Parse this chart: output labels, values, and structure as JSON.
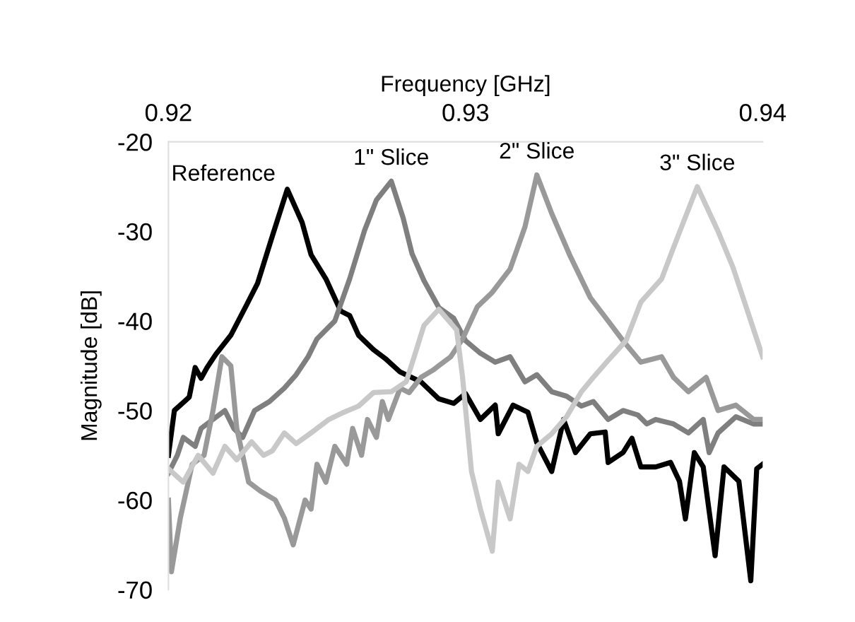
{
  "chart_data": {
    "type": "line",
    "xlabel": "Frequency [GHz]",
    "ylabel": "Magnitude [dB]",
    "xlim": [
      0.92,
      0.94
    ],
    "xticks": [
      0.92,
      0.93,
      0.94
    ],
    "ylim": [
      -70,
      -20
    ],
    "yticks": [
      -70,
      -60,
      -50,
      -40,
      -30,
      -20
    ],
    "grid": false,
    "legend": false,
    "marker": "none",
    "line_style": "solid",
    "series": [
      {
        "name": "Reference",
        "color": "#000000",
        "x": [
          0.92,
          0.9202,
          0.9207,
          0.9209,
          0.9211,
          0.9213,
          0.9216,
          0.9221,
          0.9226,
          0.923,
          0.9235,
          0.924,
          0.9245,
          0.9248,
          0.9253,
          0.9258,
          0.9261,
          0.9264,
          0.9269,
          0.9273,
          0.9278,
          0.9285,
          0.9291,
          0.9296,
          0.93,
          0.9305,
          0.931,
          0.9311,
          0.9316,
          0.9321,
          0.9324,
          0.9329,
          0.9333,
          0.9337,
          0.9342,
          0.9347,
          0.9348,
          0.9353,
          0.9356,
          0.9359,
          0.9364,
          0.9369,
          0.9372,
          0.9374,
          0.9377,
          0.938,
          0.9384,
          0.9387,
          0.9392,
          0.9396,
          0.9398,
          0.94
        ],
        "values": [
          -55,
          -50,
          -48.5,
          -45.2,
          -46.4,
          -45.2,
          -43.7,
          -41.6,
          -38.4,
          -35.8,
          -30.5,
          -25.3,
          -29,
          -32.6,
          -35.3,
          -38.9,
          -39.4,
          -41.6,
          -43.2,
          -44.2,
          -45.7,
          -46.8,
          -48.7,
          -49.2,
          -48.1,
          -51,
          -49.4,
          -52.6,
          -49.4,
          -50.2,
          -53.6,
          -56.8,
          -51,
          -54.7,
          -52.6,
          -52.4,
          -55.8,
          -54.7,
          -53.1,
          -56.3,
          -56.3,
          -55.8,
          -57.9,
          -62.1,
          -54.7,
          -56.3,
          -66.2,
          -56.3,
          -57.9,
          -69,
          -56.5,
          -56
        ]
      },
      {
        "name": "1\" Slice",
        "color": "#7f7f7f",
        "x": [
          0.92,
          0.9203,
          0.9205,
          0.9209,
          0.9211,
          0.9215,
          0.9219,
          0.9222,
          0.9225,
          0.9229,
          0.9234,
          0.9239,
          0.9243,
          0.9247,
          0.925,
          0.9253,
          0.9256,
          0.9261,
          0.9266,
          0.927,
          0.9275,
          0.9279,
          0.9282,
          0.9286,
          0.9291,
          0.9296,
          0.93,
          0.9305,
          0.931,
          0.9315,
          0.932,
          0.9324,
          0.9329,
          0.9334,
          0.9339,
          0.9343,
          0.9348,
          0.9353,
          0.9358,
          0.9361,
          0.9364,
          0.937,
          0.9375,
          0.938,
          0.9382,
          0.9385,
          0.9391,
          0.9397,
          0.94
        ],
        "values": [
          -57,
          -55,
          -53,
          -54,
          -52,
          -51,
          -50,
          -52,
          -53,
          -50,
          -49,
          -47.5,
          -46,
          -44,
          -42,
          -41,
          -40,
          -35.3,
          -29.9,
          -26.5,
          -24.4,
          -28.5,
          -32.5,
          -35.5,
          -38.5,
          -39.7,
          -42.2,
          -43.6,
          -44.6,
          -44,
          -46.8,
          -46,
          -47.9,
          -48.4,
          -49.5,
          -49,
          -51,
          -50,
          -50.5,
          -51.5,
          -51,
          -51.5,
          -52.5,
          -51,
          -54.7,
          -52.5,
          -50.7,
          -51.5,
          -51.5
        ]
      },
      {
        "name": "2\" Slice",
        "color": "#999999",
        "x": [
          0.92,
          0.9201,
          0.9204,
          0.9208,
          0.9212,
          0.9215,
          0.9218,
          0.9221,
          0.9223,
          0.9227,
          0.9231,
          0.9236,
          0.9239,
          0.9242,
          0.9246,
          0.9248,
          0.925,
          0.9253,
          0.9256,
          0.926,
          0.9262,
          0.9265,
          0.9267,
          0.927,
          0.9272,
          0.9274,
          0.9278,
          0.9281,
          0.9285,
          0.9289,
          0.9291,
          0.9295,
          0.9299,
          0.9304,
          0.9309,
          0.9315,
          0.932,
          0.9324,
          0.9329,
          0.9335,
          0.9342,
          0.9348,
          0.9353,
          0.9359,
          0.9366,
          0.937,
          0.9375,
          0.9381,
          0.9385,
          0.9391,
          0.9397,
          0.94
        ],
        "values": [
          -60,
          -68,
          -62,
          -56,
          -55,
          -50,
          -44,
          -45,
          -52,
          -58,
          -59,
          -60,
          -62,
          -65,
          -60,
          -61,
          -56,
          -58,
          -54,
          -56,
          -52,
          -55,
          -51,
          -53,
          -49,
          -51,
          -47.5,
          -48,
          -46.3,
          -45.5,
          -45,
          -44,
          -42,
          -38.4,
          -36.8,
          -34.2,
          -29.5,
          -23.7,
          -28,
          -32.6,
          -37.4,
          -40,
          -42.2,
          -44.6,
          -44,
          -46.3,
          -47.9,
          -46.3,
          -50,
          -49.4,
          -51,
          -51
        ]
      },
      {
        "name": "3\" Slice",
        "color": "#c8c8c8",
        "x": [
          0.92,
          0.9205,
          0.921,
          0.9215,
          0.9219,
          0.9223,
          0.9228,
          0.9232,
          0.9235,
          0.9239,
          0.9243,
          0.9248,
          0.9254,
          0.9259,
          0.9264,
          0.9269,
          0.9275,
          0.928,
          0.9283,
          0.9286,
          0.9291,
          0.9297,
          0.9299,
          0.9302,
          0.9305,
          0.9309,
          0.9311,
          0.9315,
          0.9318,
          0.9321,
          0.9324,
          0.9329,
          0.9334,
          0.9339,
          0.9343,
          0.9348,
          0.9354,
          0.9359,
          0.9366,
          0.937,
          0.9378,
          0.9385,
          0.939,
          0.9394,
          0.9397,
          0.94
        ],
        "values": [
          -56.5,
          -58,
          -55,
          -57,
          -54,
          -55.5,
          -53.5,
          -55,
          -54.5,
          -52.5,
          -53.7,
          -52.5,
          -51,
          -50.2,
          -49.5,
          -48,
          -47.9,
          -46.8,
          -43.7,
          -40.5,
          -38.7,
          -41,
          -46.3,
          -56.8,
          -61,
          -65.7,
          -58,
          -62.1,
          -56,
          -56.8,
          -54,
          -52.6,
          -50.7,
          -47.9,
          -46.3,
          -44.4,
          -42.2,
          -37.9,
          -35.3,
          -31.8,
          -25,
          -30,
          -34,
          -38,
          -41,
          -44
        ]
      }
    ]
  }
}
